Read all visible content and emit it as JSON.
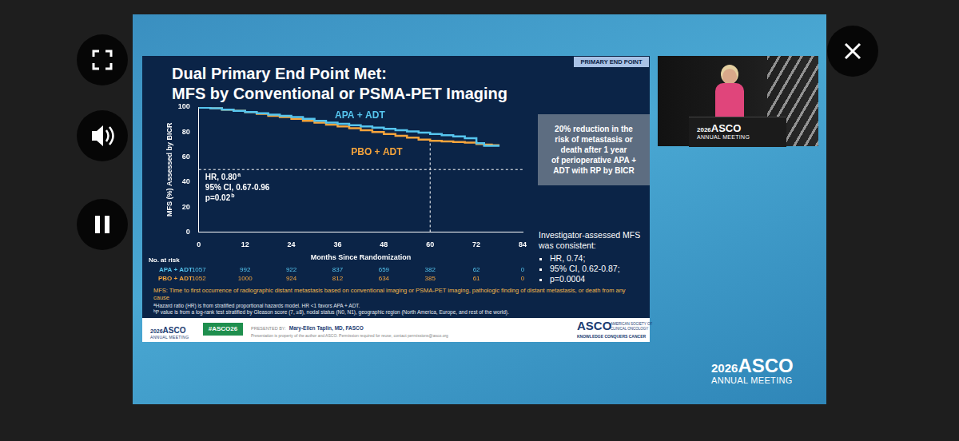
{
  "chart_data": {
    "type": "line",
    "title": [
      "Dual Primary End Point Met:",
      "MFS by Conventional or PSMA-PET Imaging"
    ],
    "x_label": "Months Since Randomization",
    "y_label": "MFS (%) Assessed by BICR",
    "xlim": [
      0,
      84
    ],
    "xticks": [
      0,
      12,
      24,
      36,
      48,
      60,
      72,
      84
    ],
    "ylim": [
      0,
      100
    ],
    "yticks": [
      0,
      20,
      40,
      60,
      80,
      100
    ],
    "grid": false,
    "x": [
      0,
      3,
      6,
      9,
      12,
      15,
      18,
      21,
      24,
      27,
      30,
      33,
      36,
      39,
      42,
      45,
      48,
      51,
      54,
      57,
      60,
      63,
      66,
      69,
      72,
      74,
      76,
      78
    ],
    "series": [
      {
        "name": "APA + ADT",
        "color": "#56c5ee",
        "line_style": "steps",
        "values": [
          100,
          99.5,
          99,
          98,
          97,
          96,
          95,
          94,
          93,
          92,
          90.5,
          89,
          87.5,
          86.5,
          85.5,
          84.5,
          83.5,
          82.5,
          81.5,
          80.5,
          79.5,
          78.5,
          77.5,
          76.5,
          75,
          71,
          69,
          69
        ]
      },
      {
        "name": "PBO + ADT",
        "color": "#f5a43c",
        "line_style": "steps",
        "values": [
          100,
          99.5,
          99,
          98,
          97,
          96,
          94.5,
          93,
          92,
          90.5,
          89,
          87.5,
          86,
          84.5,
          83,
          81.5,
          80,
          78.5,
          77,
          75.5,
          74,
          73,
          72.5,
          72,
          71.5,
          70.5,
          70,
          69.5
        ]
      }
    ],
    "reference_lines": [
      {
        "axis": "y",
        "value": 50,
        "color": "#ffffff",
        "line_style": "dashed"
      },
      {
        "axis": "x",
        "value": 60,
        "to": 74,
        "color": "#ffffff",
        "line_style": "dashed"
      }
    ],
    "annotation": [
      {
        "text": "HR, 0.80",
        "note": "a"
      },
      {
        "text": "95% CI, 0.67-0.96"
      },
      {
        "text": "p=0.02",
        "note": "b"
      }
    ],
    "at_risk": {
      "label": "No. at risk",
      "rows": [
        {
          "name": "APA + ADT",
          "color": "#56c5ee",
          "values": [
            1057,
            992,
            922,
            837,
            659,
            382,
            62,
            0
          ]
        },
        {
          "name": "PBO + ADT",
          "color": "#f5a43c",
          "values": [
            1052,
            1000,
            924,
            812,
            634,
            385,
            61,
            0
          ]
        }
      ]
    }
  },
  "slide": {
    "tag": "PRIMARY END POINT",
    "callout": [
      "20% reduction in the",
      "risk of metastasis or",
      "death after 1 year",
      "of perioperative APA +",
      "ADT with RP by BICR"
    ],
    "secondary": {
      "heading": "Investigator-assessed MFS was consistent:",
      "bullets": [
        "HR, 0.74;",
        "95% CI, 0.62-0.87;",
        "p=0.0004"
      ]
    },
    "definition": "MFS: Time to first occurrence of radiographic distant metastasis based on conventional imaging or PSMA-PET imaging, pathologic finding of distant metastasis, or death from any cause",
    "footnotes": [
      {
        "marker": "a",
        "text": "Hazard ratio (HR) is from stratified proportional hazards model. HR <1 favors APA + ADT."
      },
      {
        "marker": "b",
        "text": "P value is from a log-rank test stratified by Gleason score (7, ≥8), nodal status (N0, N1), geographic region (North America, Europe, and rest of the world)."
      }
    ],
    "footer": {
      "meeting_logo": {
        "year": "2026",
        "name": "ASCO",
        "sub": "ANNUAL MEETING"
      },
      "hashtag": "#ASCO26",
      "presenter_label": "PRESENTED BY:",
      "presenter": "Mary-Ellen Taplin, MD, FASCO",
      "disclaimer": "Presentation is property of the author and ASCO. Permission required for reuse, contact permissions@asco.org",
      "asco_logo": "ASCO",
      "asco_sub": [
        "AMERICAN SOCIETY OF",
        "CLINICAL ONCOLOGY"
      ],
      "tagline": "KNOWLEDGE CONQUERS CANCER"
    }
  },
  "video": {
    "thumbnail_logo": {
      "year": "2026",
      "name": "ASCO",
      "sub": "ANNUAL MEETING"
    },
    "logo": {
      "year": "2026",
      "name": "ASCO",
      "sub": "ANNUAL MEETING"
    }
  }
}
